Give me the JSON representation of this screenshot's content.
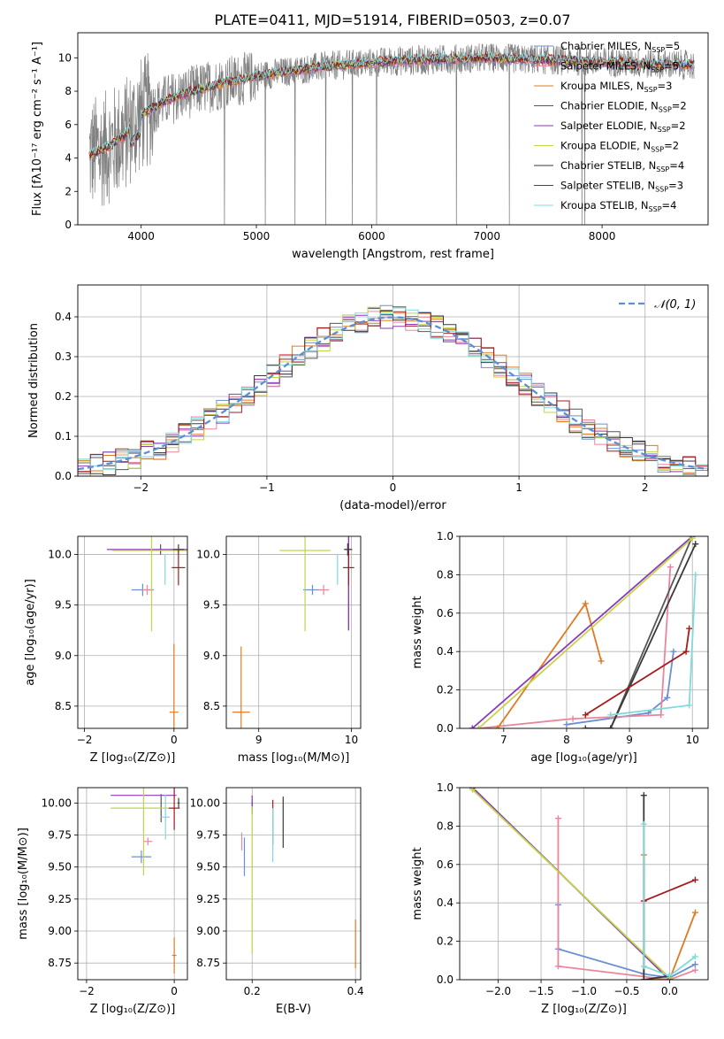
{
  "figure": {
    "title": "PLATE=0411, MJD=51914, FIBERID=0503, z=0.07"
  },
  "colors": {
    "Chabrier MILES": "#6b8fd6",
    "Salpeter MILES": "#e8879c",
    "Kroupa MILES": "#e07a22",
    "Chabrier ELODIE": "#555555",
    "Salpeter ELODIE": "#8a3ab9",
    "Kroupa ELODIE": "#c3d44a",
    "Chabrier STELIB": "#3a3a3a",
    "Salpeter STELIB": "#a51c1c",
    "Kroupa STELIB": "#7fdada",
    "data": "#808080"
  },
  "chart_data": [
    {
      "id": "spectrum",
      "type": "line",
      "xlabel": "wavelength [Angstrom, rest frame]",
      "ylabel": "Flux [fλ10⁻¹⁷ erg cm⁻² s⁻¹ A⁻¹]",
      "xlim": [
        3450,
        8920
      ],
      "ylim": [
        0,
        11.5
      ],
      "xticks": [
        4000,
        5000,
        6000,
        7000,
        8000
      ],
      "yticks": [
        0,
        2,
        4,
        6,
        8,
        10
      ],
      "legend_position": "right",
      "legend": [
        {
          "label": "Chabrier MILES, N",
          "sub": "SSP",
          "suffix": "=5",
          "color": "#6b8fd6"
        },
        {
          "label": "Salpeter MILES, N",
          "sub": "SSP",
          "suffix": "=5",
          "color": "#e8879c"
        },
        {
          "label": "Kroupa MILES, N",
          "sub": "SSP",
          "suffix": "=3",
          "color": "#e07a22"
        },
        {
          "label": "Chabrier ELODIE, N",
          "sub": "SSP",
          "suffix": "=2",
          "color": "#555555"
        },
        {
          "label": "Salpeter ELODIE, N",
          "sub": "SSP",
          "suffix": "=2",
          "color": "#8a3ab9"
        },
        {
          "label": "Kroupa ELODIE, N",
          "sub": "SSP",
          "suffix": "=2",
          "color": "#c3d44a"
        },
        {
          "label": "Chabrier STELIB, N",
          "sub": "SSP",
          "suffix": "=4",
          "color": "#3a3a3a"
        },
        {
          "label": "Salpeter STELIB, N",
          "sub": "SSP",
          "suffix": "=3",
          "color": "#a51c1c"
        },
        {
          "label": "Kroupa STELIB, N",
          "sub": "SSP",
          "suffix": "=4",
          "color": "#7fdada"
        }
      ],
      "model_curve": {
        "x": [
          3550,
          3700,
          3850,
          4000,
          4200,
          4400,
          4600,
          4800,
          5000,
          5200,
          5400,
          5600,
          5800,
          6000,
          6200,
          6400,
          6600,
          6800,
          7000,
          7200,
          7400,
          7600,
          7800,
          8000,
          8200,
          8400,
          8600,
          8800
        ],
        "y": [
          4.2,
          4.6,
          5.3,
          6.6,
          7.4,
          7.9,
          8.3,
          8.6,
          8.9,
          9.1,
          9.3,
          9.5,
          9.6,
          9.7,
          9.8,
          9.85,
          9.9,
          9.95,
          10.0,
          9.95,
          9.9,
          9.85,
          9.8,
          9.75,
          9.7,
          9.65,
          9.6,
          9.55
        ]
      }
    },
    {
      "id": "residuals",
      "type": "histogram",
      "xlabel": "(data-model)/error",
      "ylabel": "Normed distribution",
      "xlim": [
        -2.5,
        2.5
      ],
      "ylim": [
        0,
        0.48
      ],
      "xticks": [
        -2,
        -1,
        0,
        1,
        2
      ],
      "yticks": [
        0.0,
        0.1,
        0.2,
        0.3,
        0.4
      ],
      "grid": true,
      "legend_position": "top-right",
      "legend": [
        {
          "label": "𝒩(0, 1)",
          "color": "#5b8fd6"
        }
      ],
      "bin_width": 0.1
    },
    {
      "id": "age-vs-Z",
      "type": "scatter",
      "xlabel": "Z [log₁₀(Z/Z⊙)]",
      "ylabel": "age  [log₁₀(age/yr)]",
      "xlim": [
        -2.15,
        0.3
      ],
      "ylim": [
        8.28,
        10.18
      ],
      "xticks": [
        -2,
        0
      ],
      "yticks": [
        8.5,
        9.0,
        9.5,
        10.0
      ],
      "grid": true,
      "points": [
        {
          "s": "Chabrier MILES",
          "x": -0.7,
          "y": 9.65,
          "dx": 0.5,
          "dy": 0.12
        },
        {
          "s": "Salpeter MILES",
          "x": -0.6,
          "y": 9.65,
          "dx": 0.22,
          "dy": 0.1
        },
        {
          "s": "Kroupa MILES",
          "x": 0.0,
          "y": 8.44,
          "dx": 0.2,
          "dy": 1.35
        },
        {
          "s": "Chabrier ELODIE",
          "x": -0.3,
          "y": 10.05,
          "dx": 0.0,
          "dy": 0.1
        },
        {
          "s": "Salpeter ELODIE",
          "x": -0.3,
          "y": 10.05,
          "dx": 2.4,
          "dy": 0.0
        },
        {
          "s": "Kroupa ELODIE",
          "x": -0.5,
          "y": 10.04,
          "dx": 1.75,
          "dy": 1.6
        },
        {
          "s": "Chabrier STELIB",
          "x": 0.1,
          "y": 10.05,
          "dx": 0.25,
          "dy": 0.1
        },
        {
          "s": "Salpeter STELIB",
          "x": 0.1,
          "y": 9.87,
          "dx": 0.3,
          "dy": 0.35
        },
        {
          "s": "Kroupa STELIB",
          "x": -0.2,
          "y": 9.85,
          "dx": 0.0,
          "dy": 0.3
        }
      ]
    },
    {
      "id": "age-vs-mass",
      "type": "scatter",
      "xlabel": "mass [log₁₀(M/M⊙)]",
      "ylabel": "",
      "xlim": [
        8.65,
        10.1
      ],
      "ylim": [
        8.28,
        10.18
      ],
      "xticks": [
        9,
        10
      ],
      "yticks": [
        8.5,
        9.0,
        9.5,
        10.0
      ],
      "grid": true,
      "points": [
        {
          "s": "Chabrier MILES",
          "x": 9.58,
          "y": 9.65,
          "dx": 0.2,
          "dy": 0.1
        },
        {
          "s": "Salpeter MILES",
          "x": 9.7,
          "y": 9.65,
          "dx": 0.12,
          "dy": 0.1
        },
        {
          "s": "Kroupa MILES",
          "x": 8.81,
          "y": 8.44,
          "dx": 0.19,
          "dy": 1.3
        },
        {
          "s": "Chabrier ELODIE",
          "x": 9.97,
          "y": 10.05,
          "dx": 0.08,
          "dy": 1.6
        },
        {
          "s": "Salpeter ELODIE",
          "x": 9.97,
          "y": 10.05,
          "dx": 0.0,
          "dy": 1.6
        },
        {
          "s": "Kroupa ELODIE",
          "x": 9.5,
          "y": 10.04,
          "dx": 0.55,
          "dy": 1.6
        },
        {
          "s": "Chabrier STELIB",
          "x": 9.96,
          "y": 10.05,
          "dx": 0.08,
          "dy": 0.12
        },
        {
          "s": "Salpeter STELIB",
          "x": 9.97,
          "y": 9.87,
          "dx": 0.12,
          "dy": 0.35
        },
        {
          "s": "Kroupa STELIB",
          "x": 9.85,
          "y": 9.85,
          "dx": 0.0,
          "dy": 0.3
        }
      ]
    },
    {
      "id": "massweight-vs-age",
      "type": "line",
      "xlabel": "age  [log₁₀(age/yr)]",
      "ylabel": "mass weight",
      "xlim": [
        6.3,
        10.25
      ],
      "ylim": [
        0,
        1.0
      ],
      "xticks": [
        7,
        8,
        9,
        10
      ],
      "yticks": [
        0.0,
        0.2,
        0.4,
        0.6,
        0.8,
        1.0
      ],
      "grid": true,
      "series": [
        {
          "s": "Chabrier MILES",
          "x": [
            8.0,
            9.3,
            9.6,
            9.7
          ],
          "y": [
            0.02,
            0.08,
            0.16,
            0.4
          ]
        },
        {
          "s": "Salpeter MILES",
          "x": [
            6.6,
            8.1,
            9.5,
            9.65
          ],
          "y": [
            0.0,
            0.05,
            0.07,
            0.84
          ]
        },
        {
          "s": "Kroupa MILES",
          "x": [
            6.9,
            8.3,
            8.55
          ],
          "y": [
            0.0,
            0.65,
            0.35
          ]
        },
        {
          "s": "Chabrier ELODIE",
          "x": [
            8.7,
            10.0
          ],
          "y": [
            0.0,
            1.0
          ]
        },
        {
          "s": "Salpeter ELODIE",
          "x": [
            6.5,
            10.0
          ],
          "y": [
            0.0,
            1.0
          ]
        },
        {
          "s": "Kroupa ELODIE",
          "x": [
            6.6,
            10.0
          ],
          "y": [
            0.0,
            0.99
          ]
        },
        {
          "s": "Chabrier STELIB",
          "x": [
            8.3,
            8.7,
            10.05
          ],
          "y": [
            0.0,
            0.0,
            0.96
          ]
        },
        {
          "s": "Salpeter STELIB",
          "x": [
            8.3,
            9.9,
            9.95
          ],
          "y": [
            0.07,
            0.4,
            0.52
          ]
        },
        {
          "s": "Kroupa STELIB",
          "x": [
            8.7,
            9.95,
            10.05
          ],
          "y": [
            0.07,
            0.12,
            0.8
          ]
        }
      ]
    },
    {
      "id": "mass-vs-Z",
      "type": "scatter",
      "xlabel": "Z [log₁₀(Z/Z⊙)]",
      "ylabel": "mass [log₁₀(M/M⊙)]",
      "xlim": [
        -2.2,
        0.3
      ],
      "ylim": [
        8.62,
        10.12
      ],
      "xticks": [
        -2,
        0
      ],
      "yticks": [
        8.75,
        9.0,
        9.25,
        9.5,
        9.75,
        10.0
      ],
      "grid": true,
      "points": [
        {
          "s": "Chabrier MILES",
          "x": -0.75,
          "y": 9.58,
          "dx": 0.45,
          "dy": 0.1
        },
        {
          "s": "Salpeter MILES",
          "x": -0.6,
          "y": 9.7,
          "dx": 0.2,
          "dy": 0.06
        },
        {
          "s": "Kroupa MILES",
          "x": 0.0,
          "y": 8.81,
          "dx": 0.1,
          "dy": 0.28
        },
        {
          "s": "Chabrier ELODIE",
          "x": -0.3,
          "y": 9.96,
          "dx": 0.0,
          "dy": 0.22
        },
        {
          "s": "Salpeter ELODIE",
          "x": -0.7,
          "y": 10.06,
          "dx": 1.5,
          "dy": 0.0
        },
        {
          "s": "Kroupa ELODIE",
          "x": -0.7,
          "y": 9.96,
          "dx": 1.5,
          "dy": 1.05
        },
        {
          "s": "Chabrier STELIB",
          "x": 0.1,
          "y": 10.0,
          "dx": 0.05,
          "dy": 0.08
        },
        {
          "s": "Salpeter STELIB",
          "x": 0.0,
          "y": 9.96,
          "dx": 0.25,
          "dy": 0.34
        },
        {
          "s": "Kroupa STELIB",
          "x": -0.2,
          "y": 9.89,
          "dx": 0.2,
          "dy": 0.35
        }
      ]
    },
    {
      "id": "mass-vs-EBV",
      "type": "scatter",
      "xlabel": "E(B-V)",
      "ylabel": "",
      "xlim": [
        0.15,
        0.41
      ],
      "ylim": [
        8.62,
        10.12
      ],
      "xticks": [
        0.2,
        0.4
      ],
      "yticks": [
        8.75,
        9.0,
        9.25,
        9.5,
        9.75,
        10.0
      ],
      "grid": true,
      "points": [
        {
          "s": "Chabrier MILES",
          "x": 0.185,
          "y": 9.58,
          "dx": 0.0,
          "dy": 0.3
        },
        {
          "s": "Salpeter MILES",
          "x": 0.18,
          "y": 9.7,
          "dx": 0.0,
          "dy": 0.14
        },
        {
          "s": "Kroupa MILES",
          "x": 0.4,
          "y": 8.9,
          "dx": 0.0,
          "dy": 0.38
        },
        {
          "s": "Chabrier ELODIE",
          "x": 0.2,
          "y": 9.96,
          "dx": 0.0,
          "dy": 0.1
        },
        {
          "s": "Salpeter ELODIE",
          "x": 0.2,
          "y": 10.0,
          "dx": 0.0,
          "dy": 0.12
        },
        {
          "s": "Kroupa ELODIE",
          "x": 0.2,
          "y": 9.4,
          "dx": 0.0,
          "dy": 1.15
        },
        {
          "s": "Chabrier STELIB",
          "x": 0.26,
          "y": 9.85,
          "dx": 0.0,
          "dy": 0.4
        },
        {
          "s": "Salpeter STELIB",
          "x": 0.24,
          "y": 9.85,
          "dx": 0.0,
          "dy": 0.35
        },
        {
          "s": "Kroupa STELIB",
          "x": 0.24,
          "y": 9.75,
          "dx": 0.0,
          "dy": 0.42
        }
      ]
    },
    {
      "id": "massweight-vs-Z",
      "type": "line",
      "xlabel": "Z [log₁₀(Z/Z⊙)]",
      "ylabel": "mass weight",
      "xlim": [
        -2.45,
        0.45
      ],
      "ylim": [
        0,
        1.0
      ],
      "xticks": [
        -2.0,
        -1.5,
        -1.0,
        -0.5,
        0.0
      ],
      "yticks": [
        0.0,
        0.2,
        0.4,
        0.6,
        0.8,
        1.0
      ],
      "grid": true,
      "series": [
        {
          "s": "Chabrier MILES",
          "x": [
            -1.3,
            -1.3,
            -0.3,
            0.0,
            0.3
          ],
          "y": [
            0.39,
            0.16,
            0.03,
            0.01,
            0.08
          ]
        },
        {
          "s": "Salpeter MILES",
          "x": [
            -1.3,
            -1.3,
            0.0,
            0.3
          ],
          "y": [
            0.84,
            0.07,
            0.0,
            0.05
          ]
        },
        {
          "s": "Kroupa MILES",
          "x": [
            -0.3,
            -0.3,
            0.0,
            0.3
          ],
          "y": [
            0.65,
            0.0,
            0.0,
            0.35
          ]
        },
        {
          "s": "Chabrier ELODIE",
          "x": [
            -2.3,
            0.0
          ],
          "y": [
            1.0,
            0.0
          ]
        },
        {
          "s": "Salpeter ELODIE",
          "x": [
            -2.3,
            0.0
          ],
          "y": [
            1.0,
            0.0
          ]
        },
        {
          "s": "Kroupa ELODIE",
          "x": [
            -2.3,
            0.0
          ],
          "y": [
            0.99,
            0.01
          ]
        },
        {
          "s": "Chabrier STELIB",
          "x": [
            -0.3,
            -0.3,
            0.0
          ],
          "y": [
            0.96,
            0.0,
            0.02
          ]
        },
        {
          "s": "Salpeter STELIB",
          "x": [
            -0.3,
            0.3
          ],
          "y": [
            0.41,
            0.52
          ]
        },
        {
          "s": "Kroupa STELIB",
          "x": [
            -0.3,
            -0.3,
            0.0,
            0.3
          ],
          "y": [
            0.81,
            0.07,
            0.02,
            0.12
          ]
        }
      ]
    }
  ]
}
